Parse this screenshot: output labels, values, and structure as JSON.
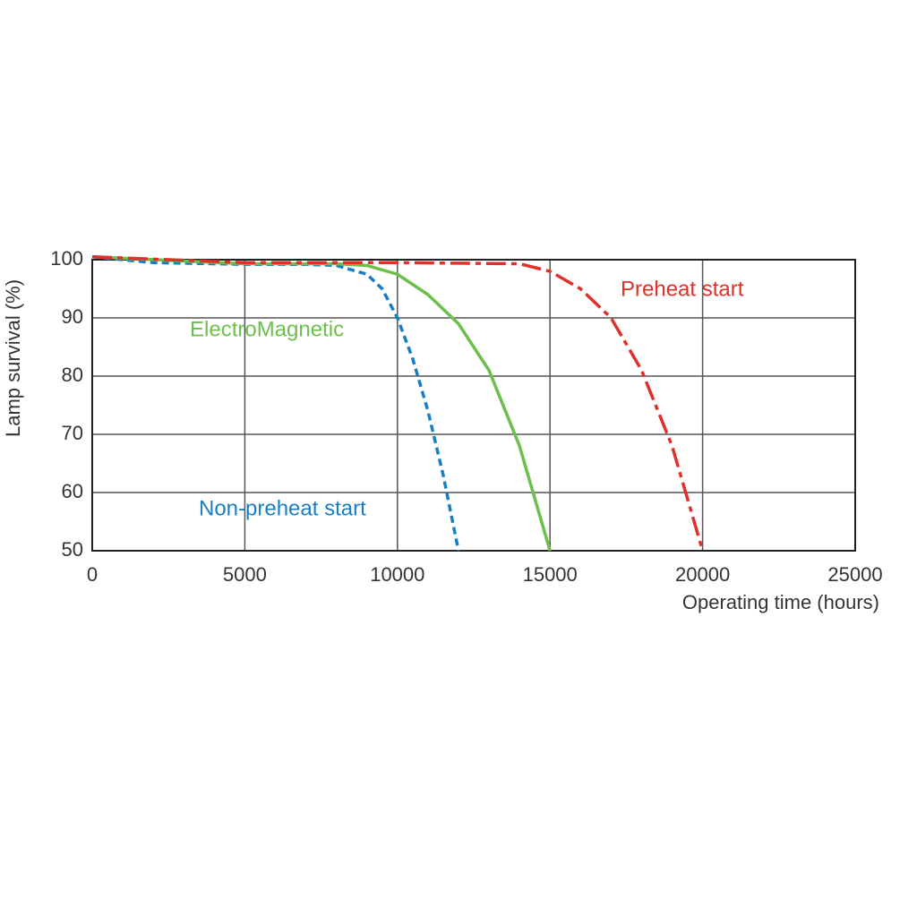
{
  "chart_data": {
    "type": "line",
    "ylabel": "Lamp survival  (%)",
    "xlabel": "Operating time (hours)",
    "xlim": [
      0,
      25000
    ],
    "xticks": [
      0,
      5000,
      10000,
      15000,
      20000,
      25000
    ],
    "ylim": [
      50,
      100
    ],
    "yticks": [
      50,
      60,
      70,
      80,
      90,
      100
    ],
    "grid": true,
    "series": [
      {
        "name": "Non-preheat start",
        "color": "#1a7fc1",
        "dash": "dashed",
        "x": [
          0,
          2000,
          5000,
          7000,
          8000,
          9000,
          9500,
          10000,
          10500,
          11000,
          11500,
          12000
        ],
        "values": [
          100.5,
          99.5,
          99.2,
          99.2,
          99,
          97.5,
          95,
          90,
          83,
          74,
          63,
          50
        ]
      },
      {
        "name": "ElectroMagnetic",
        "color": "#6cbf4a",
        "dash": "solid",
        "x": [
          0,
          5000,
          8000,
          9000,
          10000,
          11000,
          12000,
          13000,
          14000,
          15000
        ],
        "values": [
          100.5,
          99.3,
          99.3,
          99,
          97.5,
          94,
          89,
          81,
          68,
          50
        ]
      },
      {
        "name": "Preheat start",
        "color": "#e0302a",
        "dash": "dashdot",
        "x": [
          0,
          5000,
          10000,
          14000,
          15000,
          16000,
          17000,
          18000,
          19000,
          20000
        ],
        "values": [
          100.5,
          99.5,
          99.5,
          99.3,
          98,
          95,
          90,
          81,
          68,
          50
        ]
      }
    ]
  }
}
